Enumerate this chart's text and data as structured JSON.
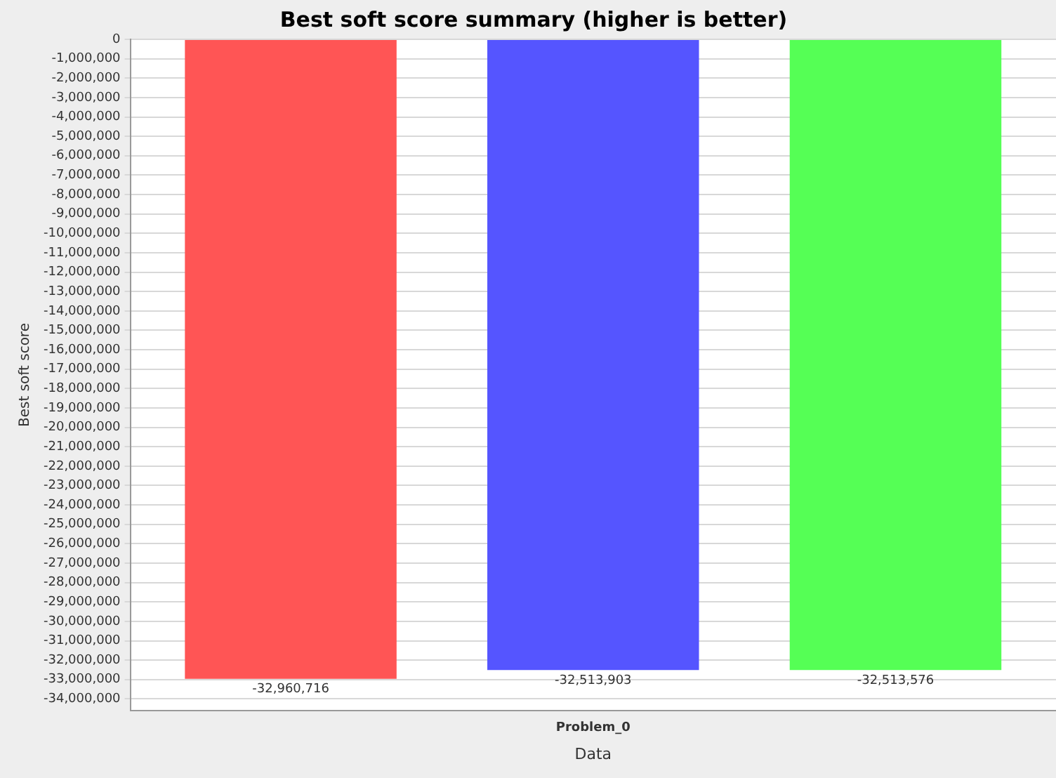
{
  "chart_data": {
    "type": "bar",
    "title": "Best soft score summary (higher is better)",
    "xlabel": "Data",
    "ylabel": "Best soft score",
    "categories": [
      "Problem_0"
    ],
    "series": [
      {
        "color": "#ff5555",
        "values": [
          -32960716
        ],
        "value_labels": [
          "-32,960,716"
        ]
      },
      {
        "color": "#5555ff",
        "values": [
          -32513903
        ],
        "value_labels": [
          "-32,513,903"
        ]
      },
      {
        "color": "#55ff55",
        "values": [
          -32513576
        ],
        "value_labels": [
          "-32,513,576"
        ]
      }
    ],
    "ylim": [
      -34600000,
      0
    ],
    "yticks": [
      {
        "value": 0,
        "label": "0"
      },
      {
        "value": -1000000,
        "label": "-1,000,000"
      },
      {
        "value": -2000000,
        "label": "-2,000,000"
      },
      {
        "value": -3000000,
        "label": "-3,000,000"
      },
      {
        "value": -4000000,
        "label": "-4,000,000"
      },
      {
        "value": -5000000,
        "label": "-5,000,000"
      },
      {
        "value": -6000000,
        "label": "-6,000,000"
      },
      {
        "value": -7000000,
        "label": "-7,000,000"
      },
      {
        "value": -8000000,
        "label": "-8,000,000"
      },
      {
        "value": -9000000,
        "label": "-9,000,000"
      },
      {
        "value": -10000000,
        "label": "-10,000,000"
      },
      {
        "value": -11000000,
        "label": "-11,000,000"
      },
      {
        "value": -12000000,
        "label": "-12,000,000"
      },
      {
        "value": -13000000,
        "label": "-13,000,000"
      },
      {
        "value": -14000000,
        "label": "-14,000,000"
      },
      {
        "value": -15000000,
        "label": "-15,000,000"
      },
      {
        "value": -16000000,
        "label": "-16,000,000"
      },
      {
        "value": -17000000,
        "label": "-17,000,000"
      },
      {
        "value": -18000000,
        "label": "-18,000,000"
      },
      {
        "value": -19000000,
        "label": "-19,000,000"
      },
      {
        "value": -20000000,
        "label": "-20,000,000"
      },
      {
        "value": -21000000,
        "label": "-21,000,000"
      },
      {
        "value": -22000000,
        "label": "-22,000,000"
      },
      {
        "value": -23000000,
        "label": "-23,000,000"
      },
      {
        "value": -24000000,
        "label": "-24,000,000"
      },
      {
        "value": -25000000,
        "label": "-25,000,000"
      },
      {
        "value": -26000000,
        "label": "-26,000,000"
      },
      {
        "value": -27000000,
        "label": "-27,000,000"
      },
      {
        "value": -28000000,
        "label": "-28,000,000"
      },
      {
        "value": -29000000,
        "label": "-29,000,000"
      },
      {
        "value": -30000000,
        "label": "-30,000,000"
      },
      {
        "value": -31000000,
        "label": "-31,000,000"
      },
      {
        "value": -32000000,
        "label": "-32,000,000"
      },
      {
        "value": -33000000,
        "label": "-33,000,000"
      },
      {
        "value": -34000000,
        "label": "-34,000,000"
      }
    ],
    "grid": "y"
  }
}
